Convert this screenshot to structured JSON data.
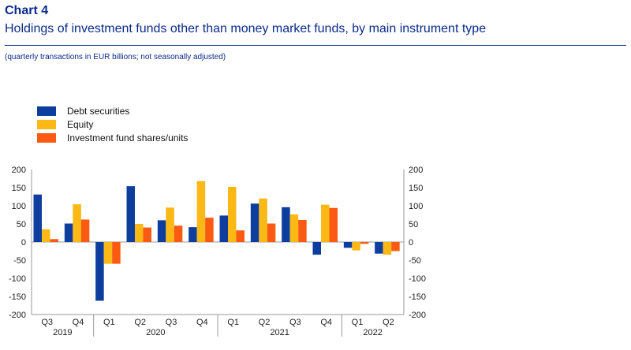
{
  "header": {
    "chart_label": "Chart 4",
    "title": "Holdings of investment funds other than money market funds, by main instrument type",
    "subtitle": "(quarterly transactions in EUR billions; not seasonally adjusted)"
  },
  "chart_data": {
    "type": "bar",
    "title": "Holdings of investment funds other than money market funds, by main instrument type",
    "subtitle": "(quarterly transactions in EUR billions; not seasonally adjusted)",
    "categories": [
      "Q3",
      "Q4",
      "Q1",
      "Q2",
      "Q3",
      "Q4",
      "Q1",
      "Q2",
      "Q3",
      "Q4",
      "Q1",
      "Q2"
    ],
    "years": [
      {
        "label": "2019",
        "first": 0,
        "last": 1
      },
      {
        "label": "2020",
        "first": 2,
        "last": 5
      },
      {
        "label": "2021",
        "first": 6,
        "last": 9
      },
      {
        "label": "2022",
        "first": 10,
        "last": 11
      }
    ],
    "series": [
      {
        "name": "Debt securities",
        "color": "#0d3e9e",
        "values": [
          131,
          51,
          -162,
          154,
          60,
          41,
          73,
          106,
          96,
          -35,
          -16,
          -32
        ]
      },
      {
        "name": "Equity",
        "color": "#fcb814",
        "values": [
          35,
          104,
          -60,
          50,
          95,
          168,
          152,
          120,
          76,
          103,
          -23,
          -35
        ]
      },
      {
        "name": "Investment fund shares/units",
        "color": "#fa5a12",
        "values": [
          8,
          62,
          -60,
          40,
          45,
          67,
          32,
          51,
          61,
          94,
          -5,
          -25
        ]
      }
    ],
    "ylim": [
      -200,
      200
    ],
    "yticks": [
      200,
      150,
      100,
      50,
      0,
      -50,
      -100,
      -150,
      -200
    ],
    "legend_position": "top-left",
    "grid": false
  }
}
